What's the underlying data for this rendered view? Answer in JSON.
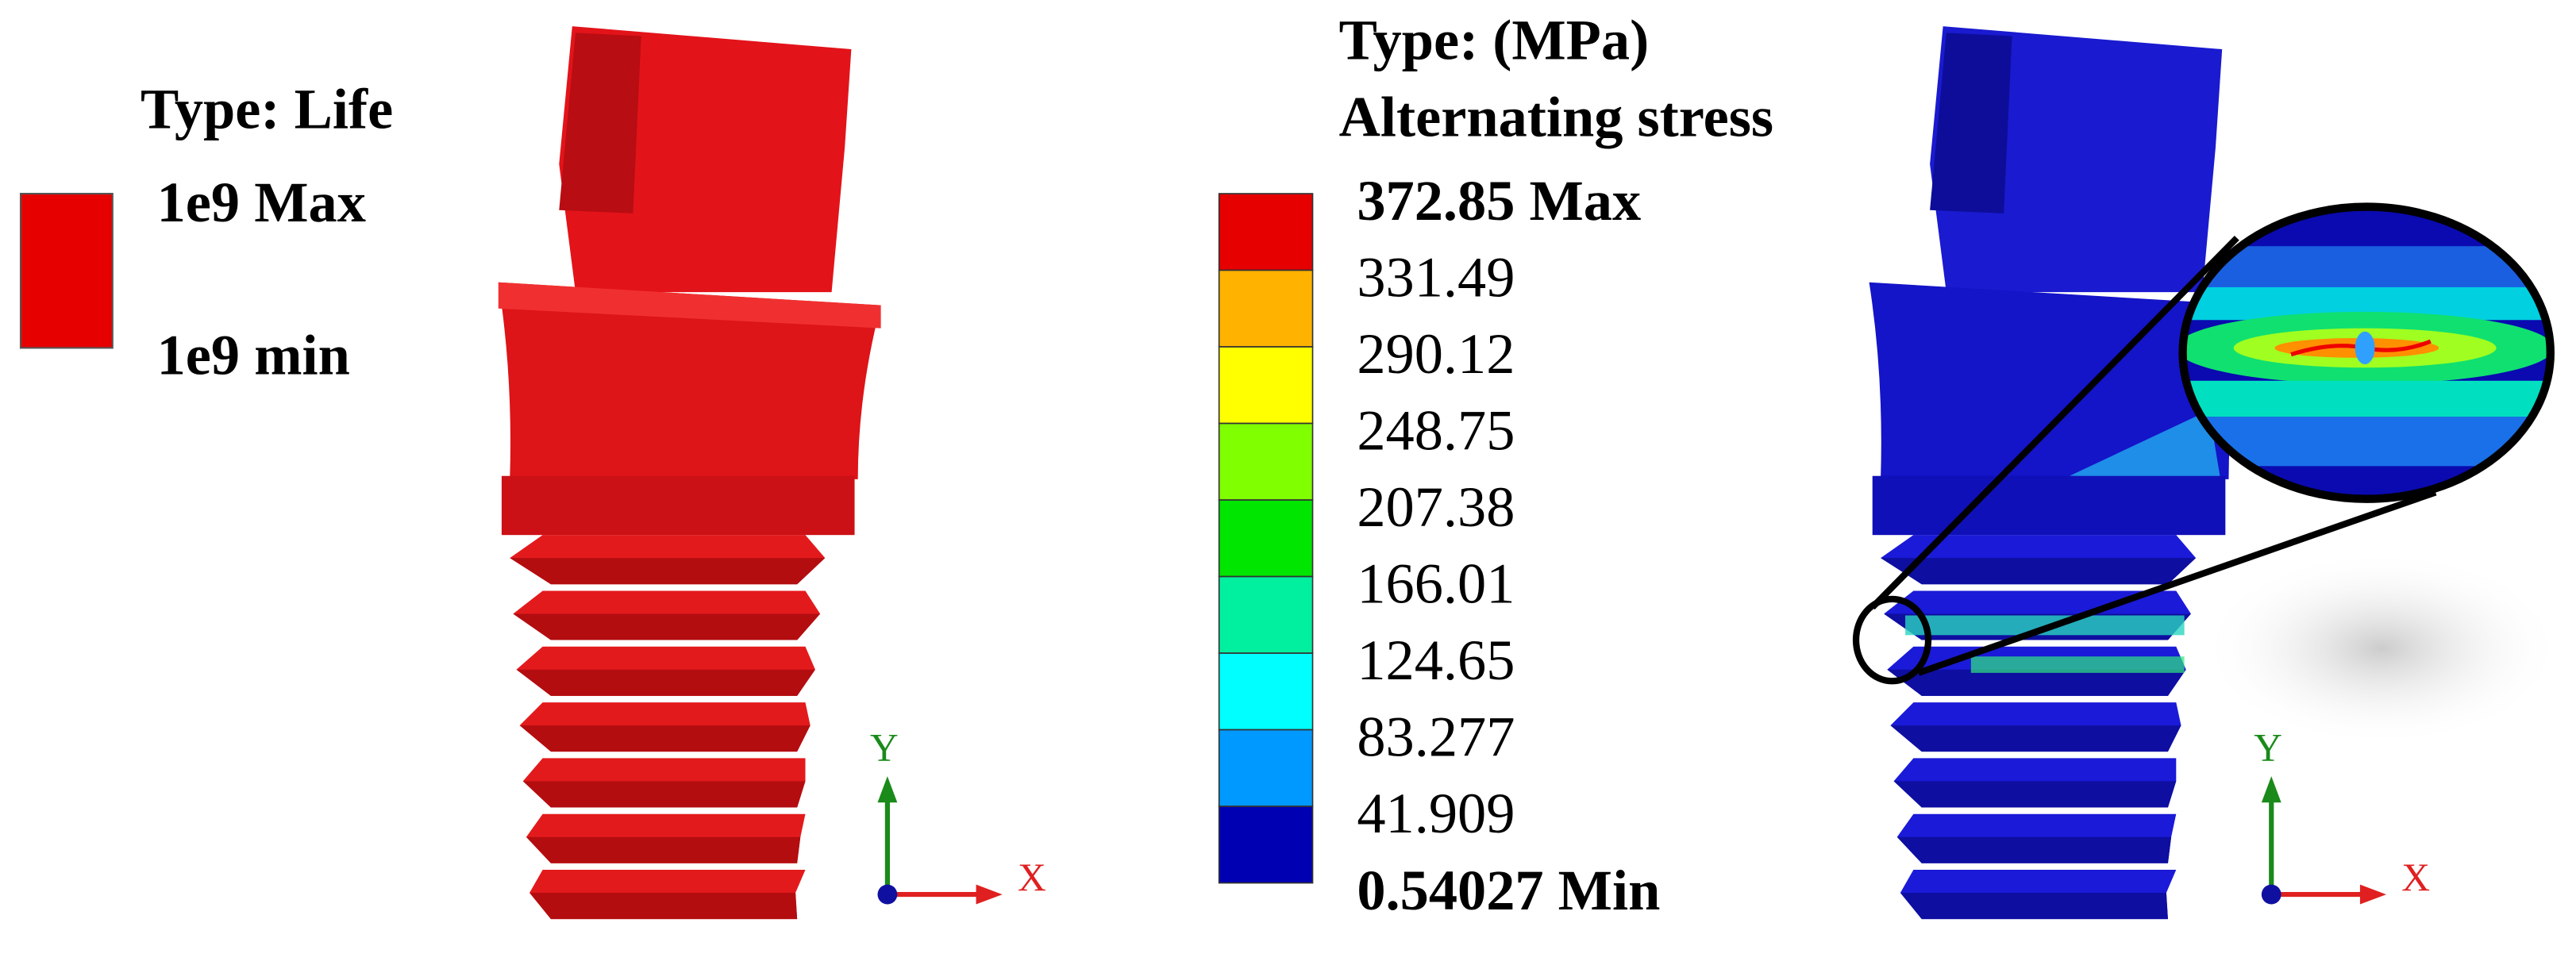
{
  "life_panel": {
    "legend": {
      "title": "Type: Life",
      "color": "#e60000",
      "labels": [
        "1e9 Max",
        "1e9 min"
      ]
    },
    "axes": {
      "y": "Y",
      "x": "X"
    }
  },
  "stress_panel": {
    "legend": {
      "title": "Type: (MPa)",
      "subtitle": "Alternating stress",
      "labels": [
        "372.85 Max",
        "331.49",
        "290.12",
        "248.75",
        "207.38",
        "166.01",
        "124.65",
        "83.277",
        "41.909",
        "0.54027 Min"
      ],
      "colors": [
        "#e60000",
        "#ffb300",
        "#ffff00",
        "#80ff00",
        "#00e600",
        "#00f0a0",
        "#00ffff",
        "#0099ff",
        "#0000b3"
      ]
    },
    "axes": {
      "y": "Y",
      "x": "X"
    }
  }
}
